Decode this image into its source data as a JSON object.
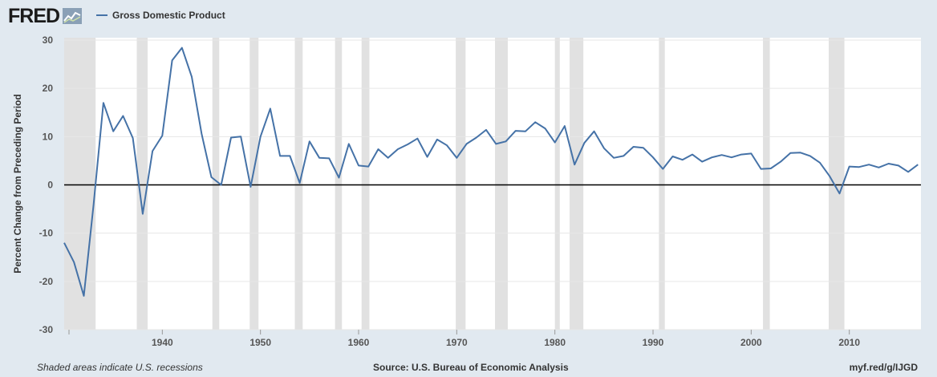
{
  "header": {
    "logo_text": "FRED",
    "legend_label": "Gross Domestic Product",
    "line_color": "#4572a7"
  },
  "footer": {
    "recession_note": "Shaded areas indicate U.S. recessions",
    "source": "Source: U.S. Bureau of Economic Analysis",
    "short_url": "myf.red/g/IJGD"
  },
  "chart_data": {
    "type": "line",
    "title": "",
    "xlabel": "",
    "ylabel": "Percent Change from Preceding Period",
    "xlim": [
      1930,
      2017.3
    ],
    "ylim": [
      -30,
      30
    ],
    "yticks": [
      30,
      20,
      10,
      0,
      -10,
      -20,
      -30
    ],
    "xticks": [
      1940,
      1950,
      1960,
      1970,
      1980,
      1990,
      2000,
      2010
    ],
    "zero_line": true,
    "colors": {
      "line": "#4572a7",
      "recession": "#e1e1e1",
      "plot_bg": "#ffffff",
      "zero_line": "#000000",
      "grid": "#e6e6e6"
    },
    "recessions": [
      [
        1929.6,
        1933.2
      ],
      [
        1937.4,
        1938.5
      ],
      [
        1945.1,
        1945.8
      ],
      [
        1948.9,
        1949.8
      ],
      [
        1953.5,
        1954.3
      ],
      [
        1957.6,
        1958.3
      ],
      [
        1960.3,
        1961.1
      ],
      [
        1969.9,
        1970.9
      ],
      [
        1973.9,
        1975.2
      ],
      [
        1980.0,
        1980.5
      ],
      [
        1981.5,
        1982.9
      ],
      [
        1990.6,
        1991.2
      ],
      [
        2001.2,
        2001.9
      ],
      [
        2007.9,
        2009.5
      ]
    ],
    "series": [
      {
        "values": [
          [
            1930,
            -12.0
          ],
          [
            1931,
            -16.0
          ],
          [
            1932,
            -23.0
          ],
          [
            1933,
            -4.0
          ],
          [
            1934,
            17.0
          ],
          [
            1935,
            11.1
          ],
          [
            1936,
            14.3
          ],
          [
            1937,
            9.7
          ],
          [
            1938,
            -6.0
          ],
          [
            1939,
            7.0
          ],
          [
            1940,
            10.2
          ],
          [
            1941,
            25.8
          ],
          [
            1942,
            28.4
          ],
          [
            1943,
            22.4
          ],
          [
            1944,
            10.6
          ],
          [
            1945,
            1.6
          ],
          [
            1946,
            0.0
          ],
          [
            1947,
            9.8
          ],
          [
            1948,
            10.0
          ],
          [
            1949,
            -0.4
          ],
          [
            1950,
            10.0
          ],
          [
            1951,
            15.8
          ],
          [
            1952,
            6.0
          ],
          [
            1953,
            6.0
          ],
          [
            1954,
            0.4
          ],
          [
            1955,
            9.0
          ],
          [
            1956,
            5.6
          ],
          [
            1957,
            5.5
          ],
          [
            1958,
            1.5
          ],
          [
            1959,
            8.5
          ],
          [
            1960,
            4.0
          ],
          [
            1961,
            3.8
          ],
          [
            1962,
            7.4
          ],
          [
            1963,
            5.6
          ],
          [
            1964,
            7.4
          ],
          [
            1965,
            8.4
          ],
          [
            1966,
            9.6
          ],
          [
            1967,
            5.8
          ],
          [
            1968,
            9.4
          ],
          [
            1969,
            8.2
          ],
          [
            1970,
            5.6
          ],
          [
            1971,
            8.5
          ],
          [
            1972,
            9.8
          ],
          [
            1973,
            11.4
          ],
          [
            1974,
            8.5
          ],
          [
            1975,
            9.0
          ],
          [
            1976,
            11.2
          ],
          [
            1977,
            11.1
          ],
          [
            1978,
            13.0
          ],
          [
            1979,
            11.7
          ],
          [
            1980,
            8.8
          ],
          [
            1981,
            12.2
          ],
          [
            1982,
            4.2
          ],
          [
            1983,
            8.7
          ],
          [
            1984,
            11.1
          ],
          [
            1985,
            7.6
          ],
          [
            1986,
            5.6
          ],
          [
            1987,
            6.0
          ],
          [
            1988,
            7.9
          ],
          [
            1989,
            7.7
          ],
          [
            1990,
            5.7
          ],
          [
            1991,
            3.3
          ],
          [
            1992,
            5.9
          ],
          [
            1993,
            5.2
          ],
          [
            1994,
            6.3
          ],
          [
            1995,
            4.8
          ],
          [
            1996,
            5.7
          ],
          [
            1997,
            6.2
          ],
          [
            1998,
            5.7
          ],
          [
            1999,
            6.3
          ],
          [
            2000,
            6.5
          ],
          [
            2001,
            3.3
          ],
          [
            2002,
            3.4
          ],
          [
            2003,
            4.8
          ],
          [
            2004,
            6.6
          ],
          [
            2005,
            6.7
          ],
          [
            2006,
            6.0
          ],
          [
            2007,
            4.6
          ],
          [
            2008,
            1.8
          ],
          [
            2009,
            -1.8
          ],
          [
            2010,
            3.8
          ],
          [
            2011,
            3.7
          ],
          [
            2012,
            4.2
          ],
          [
            2013,
            3.6
          ],
          [
            2014,
            4.4
          ],
          [
            2015,
            4.0
          ],
          [
            2016,
            2.7
          ],
          [
            2017,
            4.2
          ]
        ]
      }
    ]
  }
}
